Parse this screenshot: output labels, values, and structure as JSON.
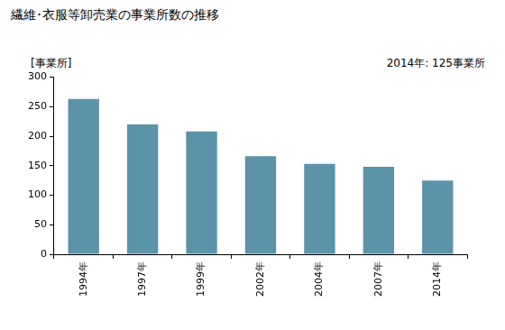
{
  "chart_data": {
    "type": "bar",
    "title": "繊維･衣服等卸売業の事業所数の推移",
    "y_label": "[事業所]",
    "annotation": "2014年: 125事業所",
    "categories": [
      "1994年",
      "1997年",
      "1999年",
      "2002年",
      "2004年",
      "2007年",
      "2014年"
    ],
    "values": [
      263,
      220,
      208,
      166,
      153,
      148,
      125
    ],
    "color": "#5b93a9",
    "ylim": [
      0,
      300
    ],
    "yticks": [
      0,
      50,
      100,
      150,
      200,
      250,
      300
    ],
    "grid": false
  }
}
